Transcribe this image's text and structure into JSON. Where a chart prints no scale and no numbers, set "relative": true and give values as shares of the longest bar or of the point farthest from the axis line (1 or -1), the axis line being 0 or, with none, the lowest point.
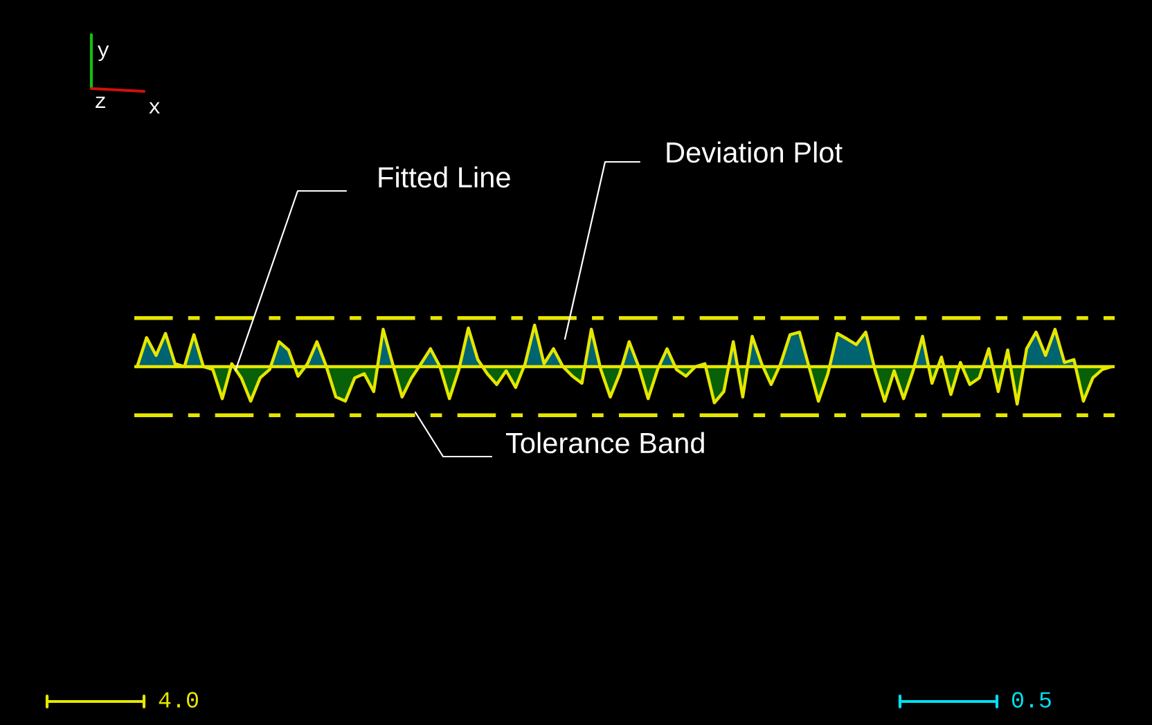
{
  "chart_data": {
    "type": "line",
    "relative": true,
    "line_style": "solid",
    "categories": [
      null,
      null,
      null,
      null,
      null,
      null,
      null,
      null,
      null,
      null,
      null,
      null,
      null,
      null,
      null,
      null,
      null,
      null,
      null,
      null,
      null,
      null,
      null,
      null,
      null,
      null,
      null,
      null,
      null,
      null,
      null,
      null,
      null,
      null,
      null,
      null,
      null,
      null,
      null,
      null,
      null,
      null,
      null,
      null,
      null,
      null,
      null,
      null,
      null,
      null,
      null,
      null,
      null,
      null,
      null,
      null,
      null,
      null,
      null,
      null,
      null,
      null,
      null,
      null,
      null,
      null,
      null,
      null,
      null,
      null,
      null,
      null,
      null,
      null,
      null,
      null,
      null,
      null,
      null,
      null,
      null,
      null,
      null,
      null,
      null,
      null,
      null,
      null,
      null,
      null,
      null,
      null,
      null,
      null,
      null,
      null,
      null,
      null,
      null,
      null,
      null,
      null,
      null,
      null
    ],
    "series": [
      {
        "color": "#e6e600",
        "values": [
          0,
          0.7,
          0.27,
          0.8,
          0.07,
          0,
          0.77,
          0,
          -0.07,
          -0.77,
          0.07,
          -0.27,
          -0.83,
          -0.27,
          -0.07,
          0.6,
          0.4,
          -0.23,
          0.07,
          0.6,
          0,
          -0.73,
          -0.83,
          -0.27,
          -0.17,
          -0.6,
          0.9,
          0.07,
          -0.73,
          -0.27,
          0.07,
          0.43,
          0,
          -0.77,
          -0.07,
          0.93,
          0.17,
          -0.17,
          -0.43,
          -0.1,
          -0.5,
          0.07,
          1,
          0.07,
          0.43,
          0,
          -0.23,
          -0.4,
          0.9,
          -0.07,
          -0.73,
          -0.17,
          0.6,
          0,
          -0.77,
          -0.07,
          0.43,
          -0.07,
          -0.23,
          0,
          0.07,
          -0.87,
          -0.6,
          0.6,
          -0.73,
          0.73,
          0.07,
          -0.43,
          0.07,
          0.77,
          0.83,
          0,
          -0.83,
          -0.17,
          0.8,
          0.67,
          0.53,
          0.83,
          -0.1,
          -0.83,
          -0.1,
          -0.77,
          -0.1,
          0.73,
          -0.4,
          0.23,
          -0.67,
          0.1,
          -0.43,
          -0.27,
          0.43,
          -0.6,
          0.4,
          -0.9,
          0.43,
          0.83,
          0.27,
          0.9,
          0.1,
          0.17,
          -0.83,
          -0.27,
          -0.07,
          0
        ]
      }
    ],
    "ref_lines": [
      {
        "axis": "y",
        "value": 0,
        "color": "#e6e600",
        "line_style": "solid"
      },
      {
        "axis": "y",
        "value": 1.17,
        "color": "#e6e600",
        "line_style": "dashed"
      },
      {
        "axis": "y",
        "value": -1.17,
        "color": "#e6e600",
        "line_style": "dashed"
      }
    ],
    "annotations": [
      "Fitted Line",
      "Deviation Plot",
      "Tolerance Band",
      "y",
      "z",
      "x",
      "4.0",
      "0.5"
    ]
  }
}
